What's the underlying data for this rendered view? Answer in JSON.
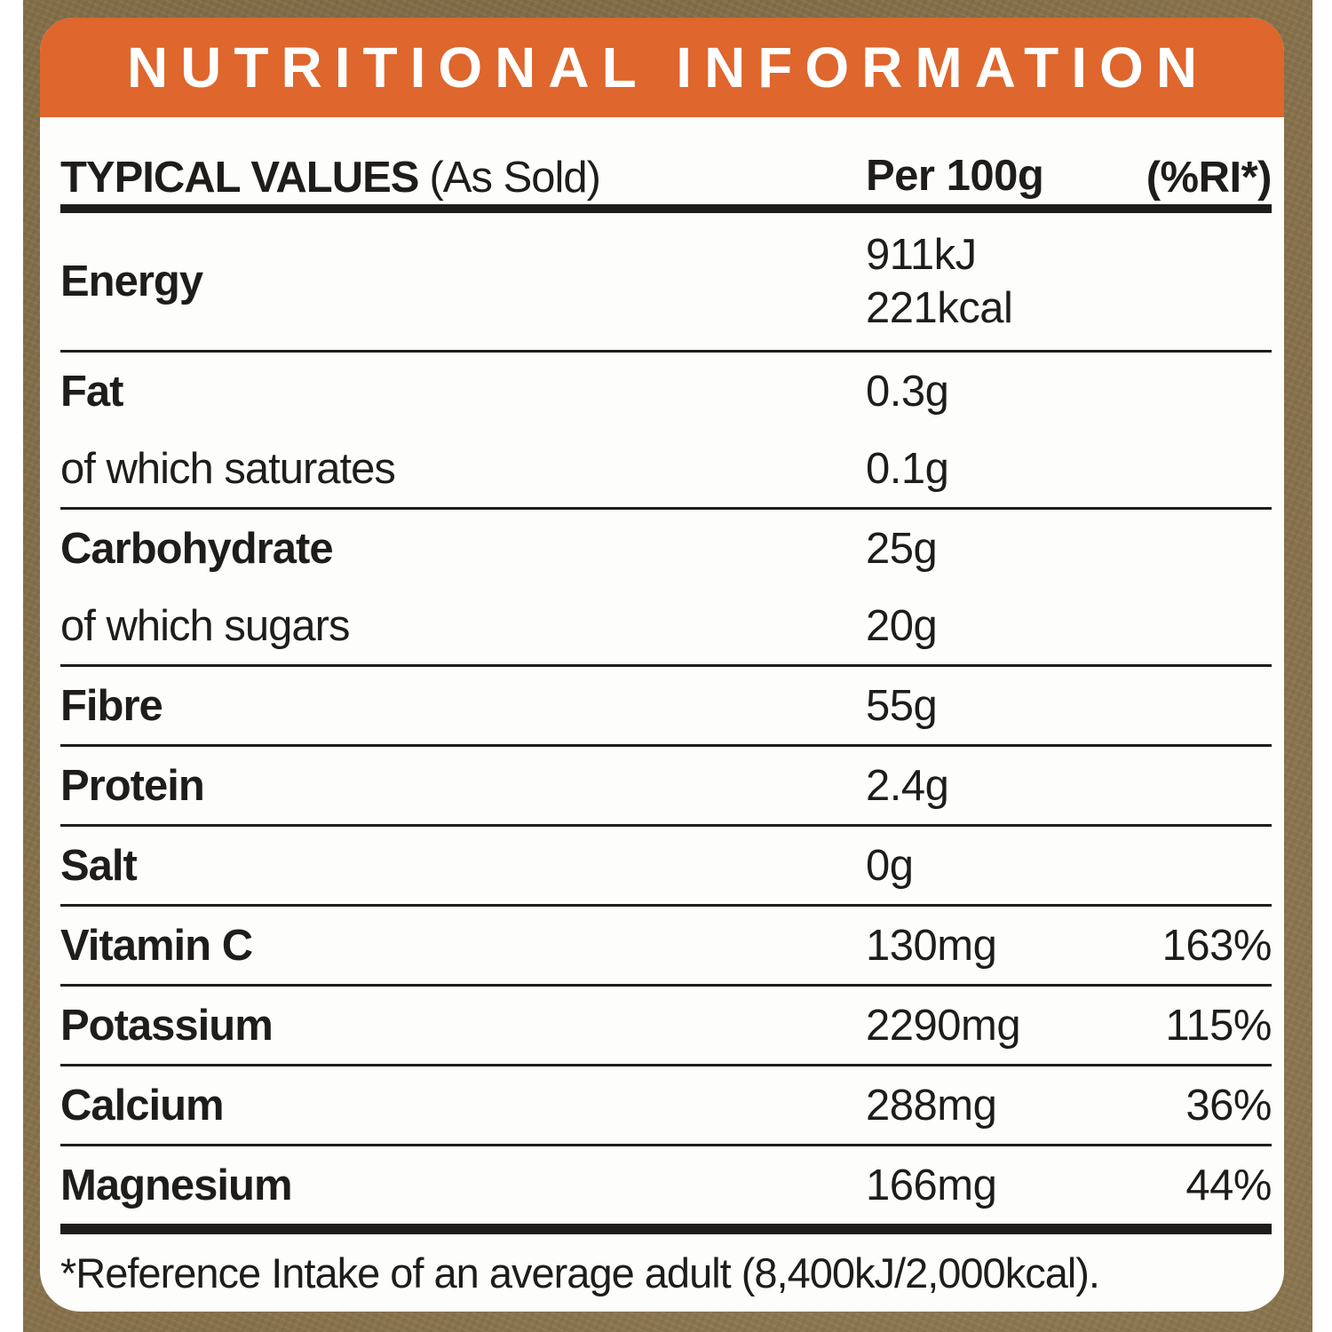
{
  "colors": {
    "accent_orange": "#DF662C",
    "frame_brown": "#86714B",
    "ink_black": "#1E1D1B",
    "label_background": "#FDFDFB"
  },
  "header": {
    "title": "NUTRITIONAL INFORMATION"
  },
  "columns": {
    "col1_bold": "TYPICAL VALUES",
    "col1_normal": "(As Sold)",
    "col2": "Per 100g",
    "col3": "(%RI*)"
  },
  "rows": [
    {
      "label": "Energy",
      "style": "main",
      "values": [
        "911kJ",
        "221kcal"
      ],
      "ri": "",
      "divider_after": true
    },
    {
      "label": "Fat",
      "style": "main",
      "values": [
        "0.3g"
      ],
      "ri": "",
      "divider_after": false
    },
    {
      "label": "of which saturates",
      "style": "sub",
      "values": [
        "0.1g"
      ],
      "ri": "",
      "divider_after": true
    },
    {
      "label": "Carbohydrate",
      "style": "main",
      "values": [
        "25g"
      ],
      "ri": "",
      "divider_after": false
    },
    {
      "label": "of which sugars",
      "style": "sub",
      "values": [
        "20g"
      ],
      "ri": "",
      "divider_after": true
    },
    {
      "label": "Fibre",
      "style": "main",
      "values": [
        "55g"
      ],
      "ri": "",
      "divider_after": true
    },
    {
      "label": "Protein",
      "style": "main",
      "values": [
        "2.4g"
      ],
      "ri": "",
      "divider_after": true
    },
    {
      "label": "Salt",
      "style": "main",
      "values": [
        "0g"
      ],
      "ri": "",
      "divider_after": true
    },
    {
      "label": "Vitamin C",
      "style": "main",
      "values": [
        "130mg"
      ],
      "ri": "163%",
      "divider_after": true
    },
    {
      "label": "Potassium",
      "style": "main",
      "values": [
        "2290mg"
      ],
      "ri": "115%",
      "divider_after": true
    },
    {
      "label": "Calcium",
      "style": "main",
      "values": [
        "288mg"
      ],
      "ri": "36%",
      "divider_after": true
    },
    {
      "label": "Magnesium",
      "style": "main",
      "values": [
        "166mg"
      ],
      "ri": "44%",
      "divider_after": false
    }
  ],
  "footnote": "*Reference Intake of an average adult (8,400kJ/2,000kcal)."
}
